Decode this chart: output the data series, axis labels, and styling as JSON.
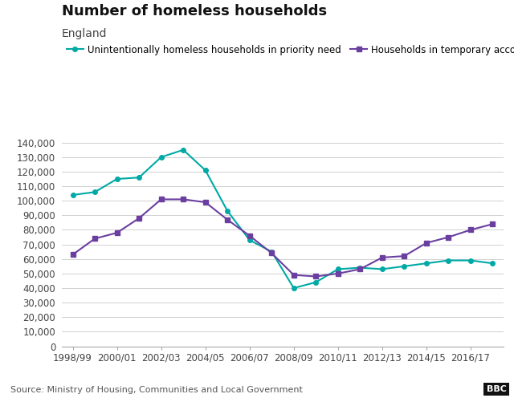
{
  "title": "Number of homeless households",
  "subtitle": "England",
  "source": "Source: Ministry of Housing, Communities and Local Government",
  "series1": {
    "label": "Unintentionally homeless households in priority need",
    "color": "#00a9a5",
    "marker": "o",
    "markersize": 4,
    "data_x": [
      0,
      1,
      2,
      3,
      4,
      5,
      6,
      7,
      8,
      9,
      10,
      11,
      12,
      13,
      14,
      15,
      16,
      17,
      18,
      19
    ],
    "data_y": [
      104000,
      106000,
      115000,
      116000,
      130000,
      135000,
      121000,
      93000,
      73000,
      65000,
      40000,
      44000,
      53000,
      54000,
      53000,
      55000,
      57000,
      59000,
      59000,
      57000
    ]
  },
  "series2": {
    "label": "Households in temporary accommodation",
    "color": "#6b3fa0",
    "marker": "s",
    "markersize": 4,
    "data_x": [
      0,
      1,
      2,
      3,
      4,
      5,
      6,
      7,
      8,
      9,
      10,
      11,
      12,
      13,
      14,
      15,
      16,
      17,
      18,
      19
    ],
    "data_y": [
      63000,
      74000,
      78000,
      88000,
      101000,
      101000,
      99000,
      87000,
      76000,
      64000,
      49000,
      48000,
      50000,
      53000,
      61000,
      62000,
      71000,
      75000,
      80000,
      84000
    ]
  },
  "x_ticks": [
    0,
    2,
    4,
    6,
    8,
    10,
    12,
    14,
    16,
    18
  ],
  "x_tick_labels": [
    "1998/99",
    "2000/01",
    "2002/03",
    "2004/05",
    "2006/07",
    "2008/09",
    "2010/11",
    "2012/13",
    "2014/15",
    "2016/17"
  ],
  "ylim": [
    0,
    145000
  ],
  "y_ticks": [
    0,
    10000,
    20000,
    30000,
    40000,
    50000,
    60000,
    70000,
    80000,
    90000,
    100000,
    110000,
    120000,
    130000,
    140000
  ],
  "background_color": "#ffffff",
  "grid_color": "#d0d0d0",
  "title_fontsize": 13,
  "subtitle_fontsize": 10,
  "legend_fontsize": 8.5,
  "tick_fontsize": 8.5
}
